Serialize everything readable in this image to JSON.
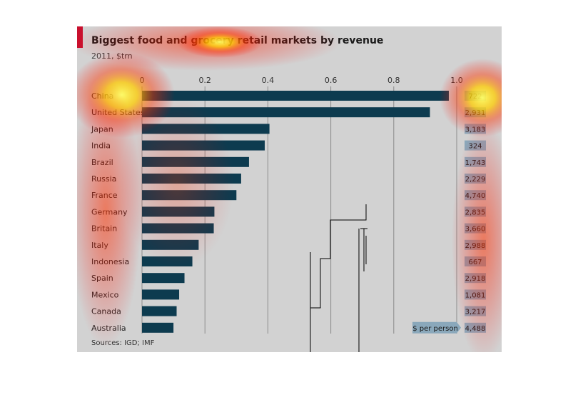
{
  "chart_data": {
    "type": "bar",
    "title": "Biggest food and grocery retail markets by revenue",
    "subtitle": "2011, $trn",
    "categories": [
      "China",
      "United States",
      "Japan",
      "India",
      "Brazil",
      "Russia",
      "France",
      "Germany",
      "Britain",
      "Italy",
      "Indonesia",
      "Spain",
      "Mexico",
      "Canada",
      "Australia"
    ],
    "values": [
      0.975,
      0.915,
      0.405,
      0.39,
      0.34,
      0.315,
      0.3,
      0.23,
      0.228,
      0.18,
      0.16,
      0.135,
      0.118,
      0.11,
      0.1
    ],
    "per_person": [
      "722",
      "2,931",
      "3,183",
      "324",
      "1,743",
      "2,229",
      "4,740",
      "2,835",
      "3,660",
      "2,988",
      "667",
      "2,918",
      "1,081",
      "3,217",
      "4,488"
    ],
    "per_person_label": "$ per person",
    "xticks": [
      0,
      0.2,
      0.4,
      0.6,
      0.8,
      1.0
    ],
    "xtick_labels": [
      "0",
      "0.2",
      "0.4",
      "0.6",
      "0.8",
      "1.0"
    ],
    "xlim": [
      0,
      1.0
    ],
    "grid": true,
    "source": "Sources: IGD; IMF",
    "colors": {
      "bar": "#0d3b4f",
      "value_box": "#8aa8bb",
      "accent": "#c8102e",
      "background": "#d2d2d2"
    }
  }
}
